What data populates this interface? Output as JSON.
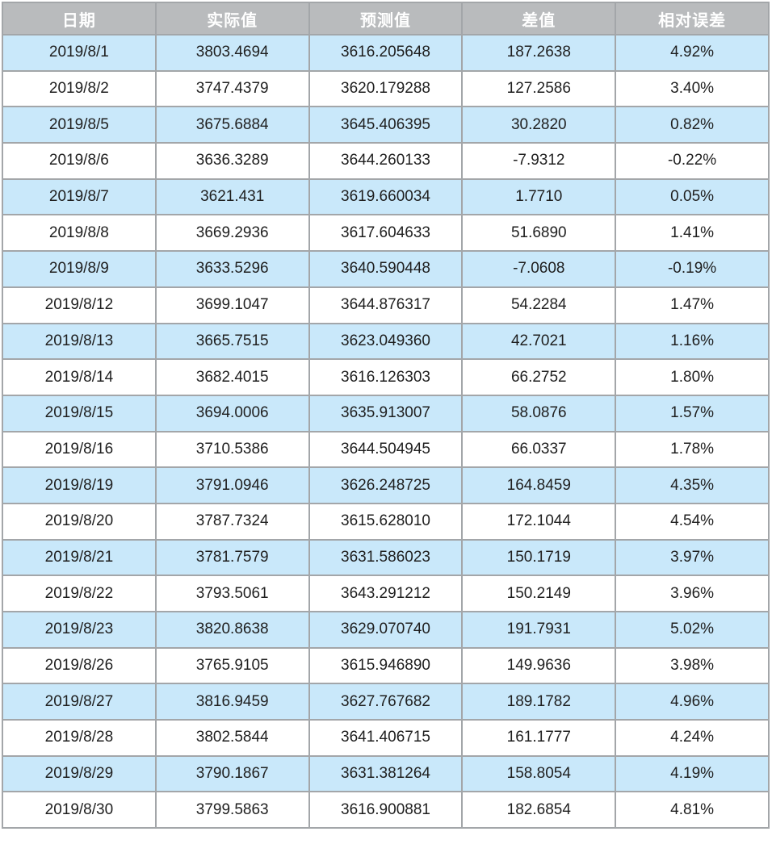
{
  "style": {
    "header_bg": "#b9bbbd",
    "header_text": "#ffffff",
    "row_alt_bg": "#c9e8fa",
    "row_bg": "#ffffff",
    "border_color": "#a3a6a9",
    "text_color": "#1f1f1f"
  },
  "chart_data": {
    "type": "table",
    "title": "",
    "columns": [
      "日期",
      "实际值",
      "预测值",
      "差值",
      "相对误差"
    ],
    "rows": [
      [
        "2019/8/1",
        "3803.4694",
        "3616.205648",
        "187.2638",
        "4.92%"
      ],
      [
        "2019/8/2",
        "3747.4379",
        "3620.179288",
        "127.2586",
        "3.40%"
      ],
      [
        "2019/8/5",
        "3675.6884",
        "3645.406395",
        "30.2820",
        "0.82%"
      ],
      [
        "2019/8/6",
        "3636.3289",
        "3644.260133",
        "-7.9312",
        "-0.22%"
      ],
      [
        "2019/8/7",
        "3621.431",
        "3619.660034",
        "1.7710",
        "0.05%"
      ],
      [
        "2019/8/8",
        "3669.2936",
        "3617.604633",
        "51.6890",
        "1.41%"
      ],
      [
        "2019/8/9",
        "3633.5296",
        "3640.590448",
        "-7.0608",
        "-0.19%"
      ],
      [
        "2019/8/12",
        "3699.1047",
        "3644.876317",
        "54.2284",
        "1.47%"
      ],
      [
        "2019/8/13",
        "3665.7515",
        "3623.049360",
        "42.7021",
        "1.16%"
      ],
      [
        "2019/8/14",
        "3682.4015",
        "3616.126303",
        "66.2752",
        "1.80%"
      ],
      [
        "2019/8/15",
        "3694.0006",
        "3635.913007",
        "58.0876",
        "1.57%"
      ],
      [
        "2019/8/16",
        "3710.5386",
        "3644.504945",
        "66.0337",
        "1.78%"
      ],
      [
        "2019/8/19",
        "3791.0946",
        "3626.248725",
        "164.8459",
        "4.35%"
      ],
      [
        "2019/8/20",
        "3787.7324",
        "3615.628010",
        "172.1044",
        "4.54%"
      ],
      [
        "2019/8/21",
        "3781.7579",
        "3631.586023",
        "150.1719",
        "3.97%"
      ],
      [
        "2019/8/22",
        "3793.5061",
        "3643.291212",
        "150.2149",
        "3.96%"
      ],
      [
        "2019/8/23",
        "3820.8638",
        "3629.070740",
        "191.7931",
        "5.02%"
      ],
      [
        "2019/8/26",
        "3765.9105",
        "3615.946890",
        "149.9636",
        "3.98%"
      ],
      [
        "2019/8/27",
        "3816.9459",
        "3627.767682",
        "189.1782",
        "4.96%"
      ],
      [
        "2019/8/28",
        "3802.5844",
        "3641.406715",
        "161.1777",
        "4.24%"
      ],
      [
        "2019/8/29",
        "3790.1867",
        "3631.381264",
        "158.8054",
        "4.19%"
      ],
      [
        "2019/8/30",
        "3799.5863",
        "3616.900881",
        "182.6854",
        "4.81%"
      ]
    ]
  }
}
